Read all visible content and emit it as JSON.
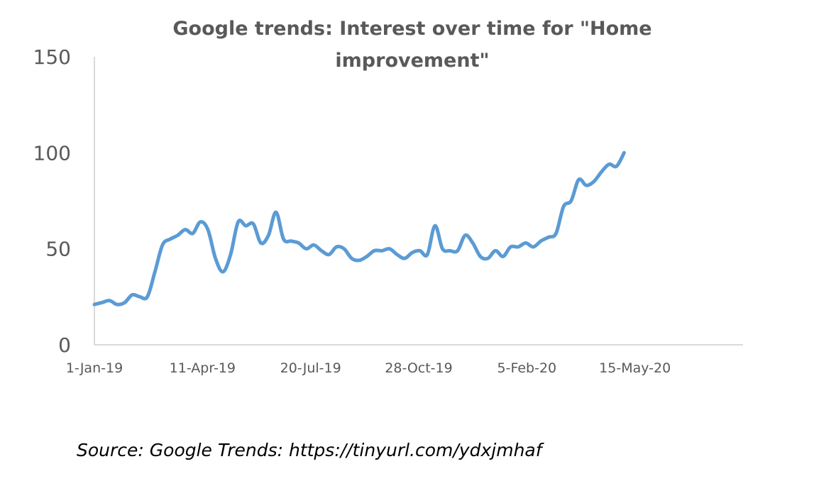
{
  "chart_data": {
    "type": "line",
    "title_lines": [
      "Google trends: Interest over time for \"Home",
      "improvement\""
    ],
    "xlabel": "",
    "ylabel": "",
    "x_ticks": [
      "1-Jan-19",
      "11-Apr-19",
      "20-Jul-19",
      "28-Oct-19",
      "5-Feb-20",
      "15-May-20"
    ],
    "y_ticks": [
      "0",
      "50",
      "100",
      "150"
    ],
    "ylim": [
      0,
      150
    ],
    "xlim": [
      "2019-01-01",
      "2020-08-23"
    ],
    "grid": false,
    "legend": "none",
    "line_color": "#5B9BD5",
    "axis_color": "#D9D9D9",
    "x": [
      "2019-01-01",
      "2019-01-08",
      "2019-01-15",
      "2019-01-22",
      "2019-01-29",
      "2019-02-05",
      "2019-02-12",
      "2019-02-19",
      "2019-02-26",
      "2019-03-05",
      "2019-03-12",
      "2019-03-19",
      "2019-03-26",
      "2019-04-02",
      "2019-04-09",
      "2019-04-16",
      "2019-04-23",
      "2019-04-30",
      "2019-05-07",
      "2019-05-14",
      "2019-05-21",
      "2019-05-28",
      "2019-06-04",
      "2019-06-11",
      "2019-06-18",
      "2019-06-25",
      "2019-07-02",
      "2019-07-09",
      "2019-07-16",
      "2019-07-23",
      "2019-07-30",
      "2019-08-06",
      "2019-08-13",
      "2019-08-20",
      "2019-08-27",
      "2019-09-03",
      "2019-09-10",
      "2019-09-17",
      "2019-09-24",
      "2019-10-01",
      "2019-10-08",
      "2019-10-15",
      "2019-10-22",
      "2019-10-29",
      "2019-11-05",
      "2019-11-12",
      "2019-11-19",
      "2019-11-26",
      "2019-12-03",
      "2019-12-10",
      "2019-12-17",
      "2019-12-24",
      "2019-12-31",
      "2020-01-07",
      "2020-01-14",
      "2020-01-21",
      "2020-01-28",
      "2020-02-04",
      "2020-02-11",
      "2020-02-18",
      "2020-02-25",
      "2020-03-03",
      "2020-03-10",
      "2020-03-17",
      "2020-03-24",
      "2020-03-31",
      "2020-04-07",
      "2020-04-14",
      "2020-04-21",
      "2020-04-28",
      "2020-05-05",
      "2020-05-12",
      "2020-05-19",
      "2020-05-26"
    ],
    "series": [
      {
        "values": [
          21,
          22,
          23,
          21,
          22,
          26,
          25,
          25,
          38,
          52,
          55,
          57,
          60,
          58,
          64,
          60,
          45,
          38,
          47,
          64,
          62,
          63,
          53,
          57,
          69,
          55,
          54,
          53,
          50,
          52,
          49,
          47,
          51,
          50,
          45,
          44,
          46,
          49,
          49,
          50,
          47,
          45,
          48,
          49,
          47,
          62,
          50,
          49,
          49,
          57,
          53,
          46,
          45,
          49,
          46,
          51,
          51,
          53,
          51,
          54,
          56,
          58,
          72,
          75,
          86,
          83,
          85,
          90,
          94,
          93,
          100,
          null,
          null,
          null
        ]
      }
    ]
  },
  "source_text": "Source: Google Trends: https://tinyurl.com/ydxjmhaf"
}
